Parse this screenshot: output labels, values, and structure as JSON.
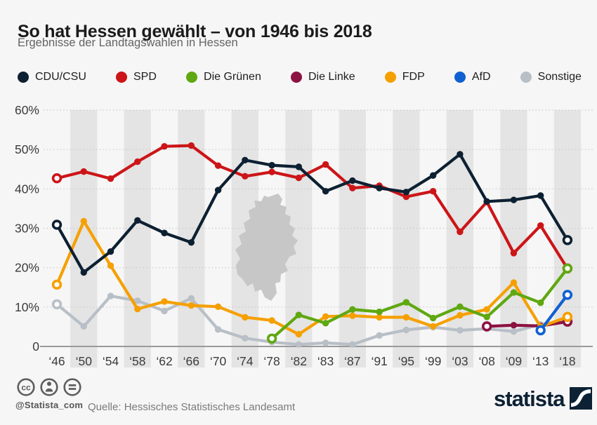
{
  "title": "So hat Hessen gewählt – von 1946 bis 2018",
  "subtitle": "Ergebnisse der Landtagswahlen in Hessen",
  "legend": [
    {
      "label": "CDU/CSU",
      "color": "#0d2032"
    },
    {
      "label": "SPD",
      "color": "#cc1518"
    },
    {
      "label": "Die Grünen",
      "color": "#5fa811"
    },
    {
      "label": "Die Linke",
      "color": "#8c1242"
    },
    {
      "label": "FDP",
      "color": "#f5a000"
    },
    {
      "label": "AfD",
      "color": "#1160d2"
    },
    {
      "label": "Sonstige",
      "color": "#b8bfc7"
    }
  ],
  "footer": {
    "handle": "@Statista_com",
    "source": "Quelle: Hessisches Statistisches Landesamt",
    "brand": "statista",
    "license_icons": [
      "cc-icon",
      "cc-by-icon",
      "cc-nd-icon"
    ]
  },
  "chart_data": {
    "type": "line",
    "title": "So hat Hessen gewählt – von 1946 bis 2018",
    "xlabel": "",
    "ylabel": "",
    "ylim": [
      0,
      60
    ],
    "grid": "dotted horizontal gridlines every 10%",
    "legend_position": "top",
    "background_bands": "alternating vertical gray stripes on every second election column, plus light-gray Hessen map silhouette in plot center",
    "categories": [
      "‘46",
      "‘50",
      "‘54",
      "‘58",
      "‘62",
      "‘66",
      "‘70",
      "‘74",
      "‘78",
      "‘82",
      "‘83",
      "‘87",
      "‘91",
      "‘95",
      "‘99",
      "‘03",
      "‘08",
      "‘09",
      "‘13",
      "‘18"
    ],
    "yticks": [
      {
        "value": 60,
        "label": "60%"
      },
      {
        "value": 50,
        "label": "50%"
      },
      {
        "value": 40,
        "label": "40%"
      },
      {
        "value": 30,
        "label": "30%"
      },
      {
        "value": 20,
        "label": "20%"
      },
      {
        "value": 10,
        "label": "10%"
      },
      {
        "value": 0,
        "label": "0"
      }
    ],
    "z_order": [
      "Sonstige",
      "Die Linke",
      "FDP",
      "SPD",
      "Die Grünen",
      "AfD",
      "CDU/CSU"
    ],
    "series": [
      {
        "name": "CDU/CSU",
        "color": "#0d2032",
        "values": [
          30.9,
          18.8,
          24.1,
          32.0,
          28.8,
          26.4,
          39.7,
          47.3,
          46.0,
          45.6,
          39.4,
          42.1,
          40.2,
          39.2,
          43.4,
          48.8,
          36.8,
          37.2,
          38.3,
          27.0
        ]
      },
      {
        "name": "SPD",
        "color": "#cc1518",
        "values": [
          42.7,
          44.4,
          42.6,
          46.9,
          50.8,
          51.0,
          45.9,
          43.2,
          44.3,
          42.8,
          46.2,
          40.2,
          40.8,
          38.0,
          39.4,
          29.1,
          36.7,
          23.7,
          30.7,
          19.8
        ]
      },
      {
        "name": "Die Grünen",
        "color": "#5fa811",
        "values": [
          null,
          null,
          null,
          null,
          null,
          null,
          null,
          null,
          2.0,
          8.0,
          5.9,
          9.4,
          8.8,
          11.2,
          7.2,
          10.1,
          7.5,
          13.7,
          11.1,
          19.8
        ]
      },
      {
        "name": "Die Linke",
        "color": "#8c1242",
        "values": [
          null,
          null,
          null,
          null,
          null,
          null,
          null,
          null,
          null,
          null,
          null,
          null,
          null,
          null,
          null,
          null,
          5.1,
          5.4,
          5.2,
          6.3
        ]
      },
      {
        "name": "FDP",
        "color": "#f5a000",
        "values": [
          15.7,
          31.8,
          20.5,
          9.5,
          11.4,
          10.4,
          10.1,
          7.4,
          6.6,
          3.1,
          7.6,
          7.8,
          7.4,
          7.4,
          5.1,
          7.9,
          9.4,
          16.2,
          5.0,
          7.5
        ]
      },
      {
        "name": "AfD",
        "color": "#1160d2",
        "values": [
          null,
          null,
          null,
          null,
          null,
          null,
          null,
          null,
          null,
          null,
          null,
          null,
          null,
          null,
          null,
          null,
          null,
          null,
          4.1,
          13.1
        ]
      },
      {
        "name": "Sonstige",
        "color": "#b8bfc7",
        "values": [
          10.7,
          5.1,
          12.8,
          11.6,
          9.0,
          12.2,
          4.3,
          2.1,
          1.1,
          0.5,
          0.9,
          0.5,
          2.8,
          4.2,
          4.9,
          4.1,
          4.5,
          3.8,
          5.6,
          6.5
        ]
      }
    ]
  }
}
